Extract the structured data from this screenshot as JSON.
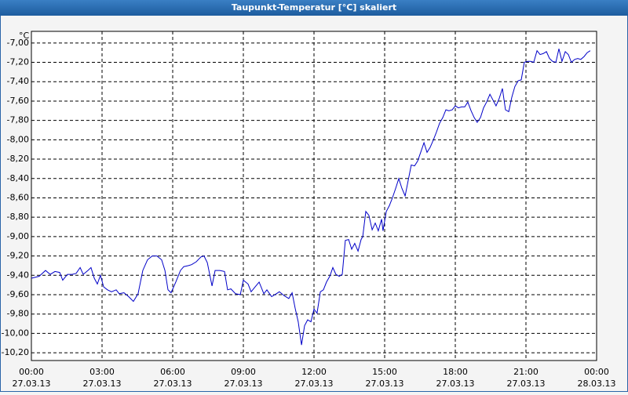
{
  "chart_data": {
    "type": "line",
    "title": "Taupunkt-Temperatur [°C] skaliert",
    "y_unit": "°C",
    "color": "#0000c8",
    "grid": true,
    "x": [
      0.0,
      0.33,
      0.6,
      0.8,
      1.0,
      1.2,
      1.33,
      1.53,
      1.73,
      1.9,
      2.07,
      2.2,
      2.4,
      2.53,
      2.67,
      2.8,
      2.93,
      3.07,
      3.23,
      3.4,
      3.6,
      3.73,
      3.93,
      4.13,
      4.33,
      4.53,
      4.73,
      4.93,
      5.13,
      5.33,
      5.53,
      5.67,
      5.8,
      5.93,
      6.13,
      6.33,
      6.47,
      6.67,
      6.8,
      7.0,
      7.2,
      7.33,
      7.47,
      7.67,
      7.8,
      8.0,
      8.2,
      8.33,
      8.47,
      8.67,
      8.87,
      9.0,
      9.2,
      9.33,
      9.53,
      9.67,
      9.87,
      10.0,
      10.2,
      10.4,
      10.53,
      10.73,
      10.93,
      11.07,
      11.2,
      11.33,
      11.47,
      11.6,
      11.73,
      11.87,
      12.0,
      12.13,
      12.27,
      12.4,
      12.53,
      12.67,
      12.8,
      12.93,
      13.07,
      13.2,
      13.33,
      13.47,
      13.6,
      13.73,
      13.87,
      14.0,
      14.07,
      14.2,
      14.33,
      14.47,
      14.6,
      14.73,
      14.87,
      14.93,
      15.07,
      15.2,
      15.33,
      15.47,
      15.6,
      15.73,
      15.87,
      16.0,
      16.13,
      16.27,
      16.4,
      16.53,
      16.67,
      16.8,
      16.93,
      17.07,
      17.2,
      17.33,
      17.47,
      17.6,
      17.73,
      17.87,
      18.0,
      18.13,
      18.27,
      18.4,
      18.53,
      18.67,
      18.8,
      18.93,
      19.07,
      19.2,
      19.33,
      19.47,
      19.6,
      19.73,
      19.87,
      20.0,
      20.13,
      20.27,
      20.4,
      20.53,
      20.67,
      20.8,
      20.93,
      21.07,
      21.2,
      21.33,
      21.47,
      21.6,
      21.73,
      21.87,
      22.0,
      22.13,
      22.27,
      22.4,
      22.53,
      22.67,
      22.8,
      22.93,
      23.07,
      23.2,
      23.33,
      23.47,
      23.6,
      23.73
    ],
    "values": [
      -9.43,
      -9.41,
      -9.35,
      -9.39,
      -9.36,
      -9.37,
      -9.45,
      -9.39,
      -9.39,
      -9.38,
      -9.32,
      -9.39,
      -9.35,
      -9.32,
      -9.43,
      -9.49,
      -9.4,
      -9.52,
      -9.55,
      -9.57,
      -9.55,
      -9.59,
      -9.58,
      -9.62,
      -9.67,
      -9.59,
      -9.35,
      -9.24,
      -9.2,
      -9.2,
      -9.24,
      -9.35,
      -9.55,
      -9.58,
      -9.47,
      -9.35,
      -9.31,
      -9.3,
      -9.29,
      -9.26,
      -9.21,
      -9.2,
      -9.27,
      -9.51,
      -9.35,
      -9.35,
      -9.36,
      -9.55,
      -9.54,
      -9.59,
      -9.6,
      -9.45,
      -9.49,
      -9.57,
      -9.51,
      -9.47,
      -9.59,
      -9.55,
      -9.62,
      -9.59,
      -9.57,
      -9.61,
      -9.64,
      -9.58,
      -9.74,
      -9.88,
      -10.12,
      -9.92,
      -9.86,
      -9.88,
      -9.75,
      -9.79,
      -9.57,
      -9.55,
      -9.47,
      -9.41,
      -9.32,
      -9.39,
      -9.41,
      -9.39,
      -9.04,
      -9.03,
      -9.13,
      -9.07,
      -9.15,
      -9.03,
      -9.0,
      -8.74,
      -8.78,
      -8.93,
      -8.86,
      -8.94,
      -8.82,
      -8.94,
      -8.74,
      -8.68,
      -8.6,
      -8.5,
      -8.4,
      -8.5,
      -8.58,
      -8.42,
      -8.26,
      -8.27,
      -8.22,
      -8.13,
      -8.03,
      -8.13,
      -8.08,
      -8.0,
      -7.92,
      -7.83,
      -7.77,
      -7.69,
      -7.7,
      -7.69,
      -7.65,
      -7.67,
      -7.66,
      -7.66,
      -7.61,
      -7.7,
      -7.77,
      -7.82,
      -7.77,
      -7.67,
      -7.61,
      -7.53,
      -7.59,
      -7.65,
      -7.57,
      -7.47,
      -7.69,
      -7.71,
      -7.56,
      -7.45,
      -7.39,
      -7.38,
      -7.2,
      -7.19,
      -7.19,
      -7.2,
      -7.08,
      -7.12,
      -7.11,
      -7.09,
      -7.16,
      -7.19,
      -7.2,
      -7.06,
      -7.19,
      -7.09,
      -7.12,
      -7.2,
      -7.17,
      -7.16,
      -7.17,
      -7.14,
      -7.1,
      -7.08
    ],
    "xlim": [
      0,
      24
    ],
    "xticks": [
      {
        "value": 0,
        "label": [
          "00:00",
          "27.03.13"
        ]
      },
      {
        "value": 3,
        "label": [
          "03:00",
          "27.03.13"
        ]
      },
      {
        "value": 6,
        "label": [
          "06:00",
          "27.03.13"
        ]
      },
      {
        "value": 9,
        "label": [
          "09:00",
          "27.03.13"
        ]
      },
      {
        "value": 12,
        "label": [
          "12:00",
          "27.03.13"
        ]
      },
      {
        "value": 15,
        "label": [
          "15:00",
          "27.03.13"
        ]
      },
      {
        "value": 18,
        "label": [
          "18:00",
          "27.03.13"
        ]
      },
      {
        "value": 21,
        "label": [
          "21:00",
          "27.03.13"
        ]
      },
      {
        "value": 24,
        "label": [
          "00:00",
          "28.03.13"
        ]
      }
    ],
    "ylim": [
      -10.28,
      -6.88
    ],
    "yticks": [
      {
        "value": -7.0,
        "label": "-7,00"
      },
      {
        "value": -7.2,
        "label": "-7,20"
      },
      {
        "value": -7.4,
        "label": "-7,40"
      },
      {
        "value": -7.6,
        "label": "-7,60"
      },
      {
        "value": -7.8,
        "label": "-7,80"
      },
      {
        "value": -8.0,
        "label": "-8,00"
      },
      {
        "value": -8.2,
        "label": "-8,20"
      },
      {
        "value": -8.4,
        "label": "-8,40"
      },
      {
        "value": -8.6,
        "label": "-8,60"
      },
      {
        "value": -8.8,
        "label": "-8,80"
      },
      {
        "value": -9.0,
        "label": "-9,00"
      },
      {
        "value": -9.2,
        "label": "-9,20"
      },
      {
        "value": -9.4,
        "label": "-9,40"
      },
      {
        "value": -9.6,
        "label": "-9,60"
      },
      {
        "value": -9.8,
        "label": "-9,80"
      },
      {
        "value": -10.0,
        "label": "-10,00"
      },
      {
        "value": -10.2,
        "label": "-10,20"
      }
    ]
  }
}
